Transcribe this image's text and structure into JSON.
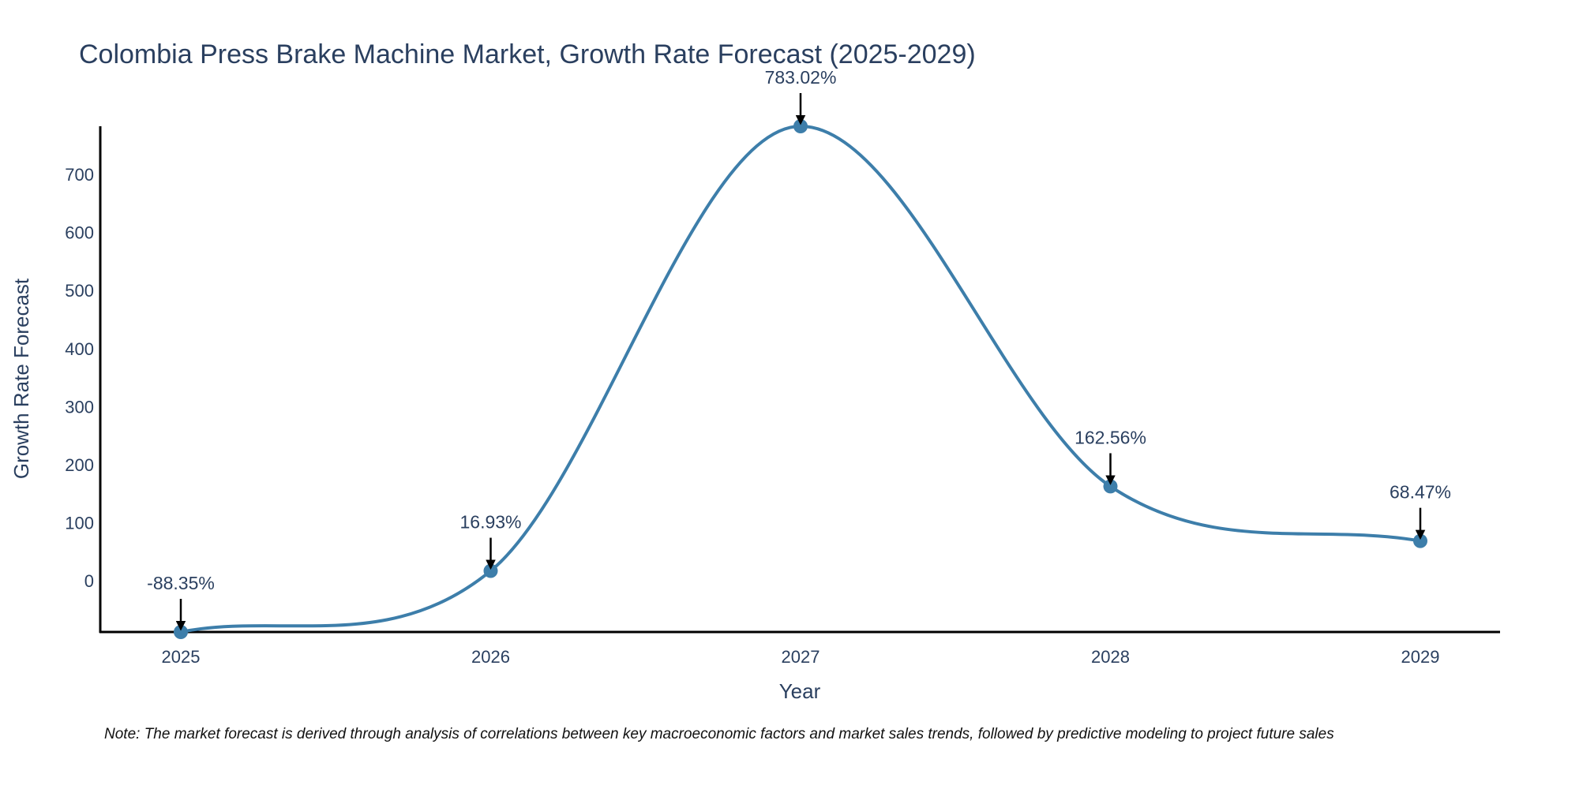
{
  "chart_data": {
    "type": "line",
    "title": "Colombia Press Brake Machine Market, Growth Rate Forecast (2025-2029)",
    "xlabel": "Year",
    "ylabel": "Growth Rate Forecast",
    "categories": [
      "2025",
      "2026",
      "2027",
      "2028",
      "2029"
    ],
    "values": [
      -88.35,
      16.93,
      783.02,
      162.56,
      68.47
    ],
    "data_labels": [
      "-88.35%",
      "16.93%",
      "783.02%",
      "162.56%",
      "68.47%"
    ],
    "y_ticks": [
      0,
      100,
      200,
      300,
      400,
      500,
      600,
      700
    ],
    "ylim": [
      -88.35,
      783.02
    ],
    "line_color": "#3d7eaa",
    "marker_color": "#3d7eaa",
    "text_color": "#2a3f5f",
    "grid": false,
    "legend": "none"
  },
  "note": "Note: The market forecast is derived through analysis of correlations between key macroeconomic factors and market sales trends, followed by predictive modeling to project future sales"
}
